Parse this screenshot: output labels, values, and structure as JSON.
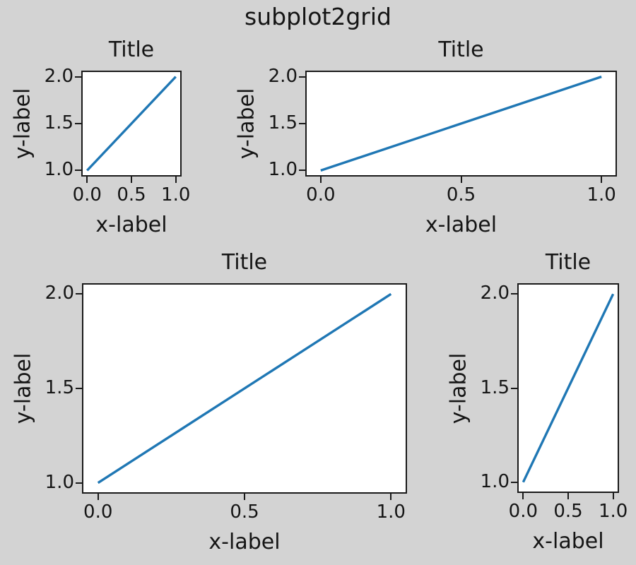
{
  "figure": {
    "background_color": "#d3d3d3",
    "axes_face_color": "#ffffff",
    "spine_color": "#1a1a1a",
    "text_color": "#151515",
    "line_color": "#1f77b4"
  },
  "chart_data": {
    "type": "line",
    "title": "subplot2grid",
    "layout_hint": "matplotlib subplot2grid on a 3x3 grid with tight layout: ax1 cell (0,0); ax2 cell (0,1) colspan 2; ax3 cell (1,0) colspan 2 rowspan 2; ax4 cell (1,2) rowspan 2; legend off; grid off",
    "subplots": [
      {
        "id": "ax1",
        "position": "top-left",
        "layout": {
          "cell": [
            0,
            0
          ],
          "colspan": 1,
          "rowspan": 1
        },
        "title": "Title",
        "xlabel": "x-label",
        "ylabel": "y-label",
        "series": [
          {
            "x": [
              0,
              1
            ],
            "y": [
              1,
              2
            ]
          }
        ],
        "xlim": [
          -0.05,
          1.05
        ],
        "ylim": [
          0.95,
          2.05
        ],
        "xticks": {
          "values": [
            0.0,
            0.5,
            1.0
          ],
          "labels": [
            "0.0",
            "0.5",
            "1.0"
          ]
        },
        "yticks": {
          "values": [
            1.0,
            1.5,
            2.0
          ],
          "labels": [
            "1.0",
            "1.5",
            "2.0"
          ]
        }
      },
      {
        "id": "ax2",
        "position": "top-right",
        "layout": {
          "cell": [
            0,
            1
          ],
          "colspan": 2,
          "rowspan": 1
        },
        "title": "Title",
        "xlabel": "x-label",
        "ylabel": "y-label",
        "series": [
          {
            "x": [
              0,
              1
            ],
            "y": [
              1,
              2
            ]
          }
        ],
        "xlim": [
          -0.05,
          1.05
        ],
        "ylim": [
          0.95,
          2.05
        ],
        "xticks": {
          "values": [
            0.0,
            0.5,
            1.0
          ],
          "labels": [
            "0.0",
            "0.5",
            "1.0"
          ]
        },
        "yticks": {
          "values": [
            1.0,
            1.5,
            2.0
          ],
          "labels": [
            "1.0",
            "1.5",
            "2.0"
          ]
        }
      },
      {
        "id": "ax3",
        "position": "bottom-left",
        "layout": {
          "cell": [
            1,
            0
          ],
          "colspan": 2,
          "rowspan": 2
        },
        "title": "Title",
        "xlabel": "x-label",
        "ylabel": "y-label",
        "series": [
          {
            "x": [
              0,
              1
            ],
            "y": [
              1,
              2
            ]
          }
        ],
        "xlim": [
          -0.05,
          1.05
        ],
        "ylim": [
          0.95,
          2.05
        ],
        "xticks": {
          "values": [
            0.0,
            0.5,
            1.0
          ],
          "labels": [
            "0.0",
            "0.5",
            "1.0"
          ]
        },
        "yticks": {
          "values": [
            1.0,
            1.5,
            2.0
          ],
          "labels": [
            "1.0",
            "1.5",
            "2.0"
          ]
        }
      },
      {
        "id": "ax4",
        "position": "bottom-right",
        "layout": {
          "cell": [
            1,
            2
          ],
          "colspan": 1,
          "rowspan": 2
        },
        "title": "Title",
        "xlabel": "x-label",
        "ylabel": "y-label",
        "series": [
          {
            "x": [
              0,
              1
            ],
            "y": [
              1,
              2
            ]
          }
        ],
        "xlim": [
          -0.05,
          1.05
        ],
        "ylim": [
          0.95,
          2.05
        ],
        "xticks": {
          "values": [
            0.0,
            0.5,
            1.0
          ],
          "labels": [
            "0.0",
            "0.5",
            "1.0"
          ]
        },
        "yticks": {
          "values": [
            1.0,
            1.5,
            2.0
          ],
          "labels": [
            "1.0",
            "1.5",
            "2.0"
          ]
        }
      }
    ]
  }
}
